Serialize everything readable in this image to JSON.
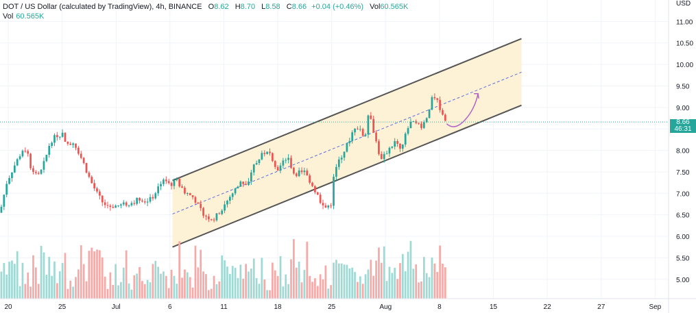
{
  "legend": {
    "symbol": "DOT / US Dollar (calculated by TradingView), 4h, BINANCE",
    "open_label": "O",
    "open": "8.62",
    "high_label": "H",
    "high": "8.70",
    "low_label": "L",
    "low": "8.58",
    "close_label": "C",
    "close": "8.66",
    "change": "+0.04 (+0.46%)",
    "vol_label": "Vol",
    "vol": "60.565K"
  },
  "volume_legend": {
    "label": "Vol",
    "value": "60.565K"
  },
  "price_label": {
    "price": "8.66",
    "countdown": "46:31"
  },
  "colors": {
    "up": "#26a69a",
    "down": "#ef5350",
    "up_volume": "#9fd9d3",
    "down_volume": "#f7a9a7",
    "channel_fill": "#fdf1d6",
    "channel_line": "#555555",
    "midline": "#5b6ee1",
    "arrow": "#b061c9",
    "last_price_line": "#26a69a"
  },
  "chart_data": {
    "type": "candlestick",
    "currency": "USD",
    "y_axis": {
      "min": 4.55,
      "max": 11.5,
      "ticks": [
        "11.00",
        "10.50",
        "10.00",
        "9.50",
        "9.00",
        "8.50",
        "8.00",
        "7.50",
        "7.00",
        "6.50",
        "6.00",
        "5.50",
        "5.00"
      ]
    },
    "x_axis": {
      "labels": [
        "20",
        "25",
        "Jul",
        "6",
        "11",
        "18",
        "25",
        "Aug",
        "8",
        "15",
        "22",
        "27",
        "Sep"
      ]
    },
    "grid": true,
    "last_price": 8.66,
    "price_path": [
      {
        "x": 0,
        "y": 6.55
      },
      {
        "x": 0.01,
        "y": 7.25
      },
      {
        "x": 0.02,
        "y": 7.6
      },
      {
        "x": 0.03,
        "y": 7.9
      },
      {
        "x": 0.04,
        "y": 8.05
      },
      {
        "x": 0.045,
        "y": 7.65
      },
      {
        "x": 0.05,
        "y": 7.5
      },
      {
        "x": 0.06,
        "y": 7.45
      },
      {
        "x": 0.068,
        "y": 7.8
      },
      {
        "x": 0.075,
        "y": 8.2
      },
      {
        "x": 0.085,
        "y": 8.35
      },
      {
        "x": 0.095,
        "y": 8.4
      },
      {
        "x": 0.1,
        "y": 8.1
      },
      {
        "x": 0.11,
        "y": 8.2
      },
      {
        "x": 0.115,
        "y": 8.05
      },
      {
        "x": 0.125,
        "y": 7.7
      },
      {
        "x": 0.135,
        "y": 7.3
      },
      {
        "x": 0.145,
        "y": 7.0
      },
      {
        "x": 0.155,
        "y": 6.75
      },
      {
        "x": 0.165,
        "y": 6.7
      },
      {
        "x": 0.18,
        "y": 6.72
      },
      {
        "x": 0.2,
        "y": 6.8
      },
      {
        "x": 0.21,
        "y": 6.9
      },
      {
        "x": 0.22,
        "y": 6.78
      },
      {
        "x": 0.23,
        "y": 6.95
      },
      {
        "x": 0.24,
        "y": 7.25
      },
      {
        "x": 0.245,
        "y": 7.35
      },
      {
        "x": 0.255,
        "y": 7.2
      },
      {
        "x": 0.265,
        "y": 7.3
      },
      {
        "x": 0.275,
        "y": 7.05
      },
      {
        "x": 0.29,
        "y": 6.9
      },
      {
        "x": 0.3,
        "y": 6.6
      },
      {
        "x": 0.31,
        "y": 6.45
      },
      {
        "x": 0.32,
        "y": 6.4
      },
      {
        "x": 0.33,
        "y": 6.6
      },
      {
        "x": 0.345,
        "y": 6.95
      },
      {
        "x": 0.36,
        "y": 7.25
      },
      {
        "x": 0.37,
        "y": 7.15
      },
      {
        "x": 0.38,
        "y": 7.65
      },
      {
        "x": 0.395,
        "y": 7.95
      },
      {
        "x": 0.405,
        "y": 7.9
      },
      {
        "x": 0.415,
        "y": 7.55
      },
      {
        "x": 0.425,
        "y": 7.75
      },
      {
        "x": 0.43,
        "y": 7.85
      },
      {
        "x": 0.44,
        "y": 7.45
      },
      {
        "x": 0.455,
        "y": 7.5
      },
      {
        "x": 0.465,
        "y": 7.25
      },
      {
        "x": 0.475,
        "y": 6.95
      },
      {
        "x": 0.485,
        "y": 6.65
      },
      {
        "x": 0.495,
        "y": 6.75
      },
      {
        "x": 0.5,
        "y": 7.5
      },
      {
        "x": 0.51,
        "y": 7.85
      },
      {
        "x": 0.52,
        "y": 8.15
      },
      {
        "x": 0.53,
        "y": 8.55
      },
      {
        "x": 0.54,
        "y": 8.5
      },
      {
        "x": 0.545,
        "y": 8.15
      },
      {
        "x": 0.55,
        "y": 8.9
      },
      {
        "x": 0.555,
        "y": 8.7
      },
      {
        "x": 0.565,
        "y": 8.05
      },
      {
        "x": 0.57,
        "y": 7.75
      },
      {
        "x": 0.58,
        "y": 8.0
      },
      {
        "x": 0.59,
        "y": 8.2
      },
      {
        "x": 0.6,
        "y": 8.0
      },
      {
        "x": 0.61,
        "y": 8.55
      },
      {
        "x": 0.62,
        "y": 8.75
      },
      {
        "x": 0.63,
        "y": 8.5
      },
      {
        "x": 0.64,
        "y": 8.8
      },
      {
        "x": 0.648,
        "y": 9.3
      },
      {
        "x": 0.655,
        "y": 9.1
      },
      {
        "x": 0.662,
        "y": 8.85
      },
      {
        "x": 0.668,
        "y": 8.66
      }
    ],
    "channel": {
      "upper": {
        "start": [
          0.258,
          7.3
        ],
        "end": [
          0.78,
          10.6
        ]
      },
      "lower": {
        "start": [
          0.258,
          5.75
        ],
        "end": [
          0.78,
          9.05
        ]
      },
      "mid": {
        "start": [
          0.258,
          6.52
        ],
        "end": [
          0.78,
          9.82
        ]
      }
    },
    "projection": [
      [
        0.668,
        8.62
      ],
      [
        0.68,
        8.45
      ],
      [
        0.695,
        8.7
      ],
      [
        0.715,
        9.32
      ]
    ]
  }
}
